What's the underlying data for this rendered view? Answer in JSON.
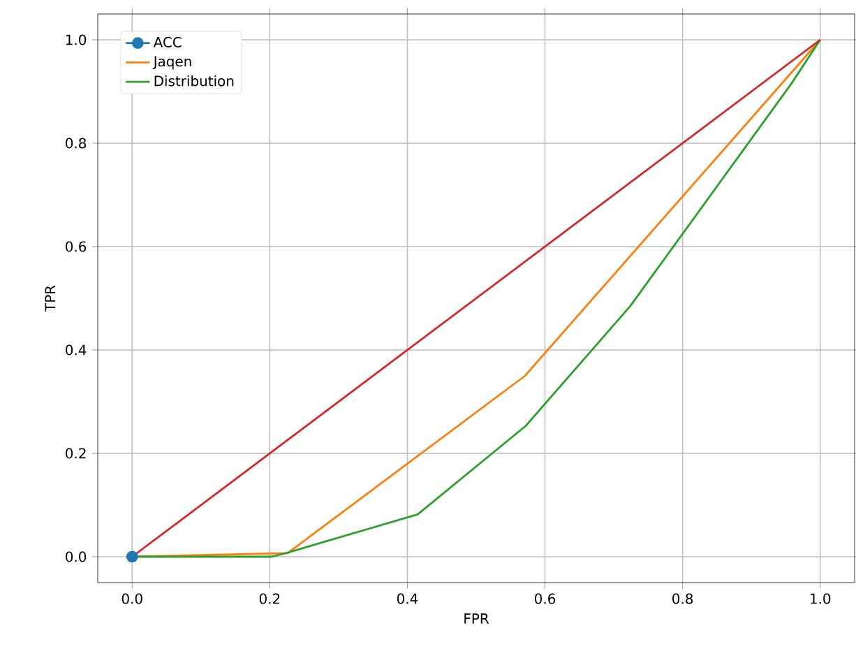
{
  "chart_data": {
    "type": "line",
    "xlabel": "FPR",
    "ylabel": "TPR",
    "xlim": [
      -0.05,
      1.05
    ],
    "ylim": [
      -0.05,
      1.05
    ],
    "xticks": [
      {
        "value": 0,
        "label": "0.0"
      },
      {
        "value": 0.2,
        "label": "0.2"
      },
      {
        "value": 0.4,
        "label": "0.4"
      },
      {
        "value": 0.6,
        "label": "0.6"
      },
      {
        "value": 0.8,
        "label": "0.8"
      },
      {
        "value": 1,
        "label": "1.0"
      }
    ],
    "yticks": [
      {
        "value": 0,
        "label": "0.0"
      },
      {
        "value": 0.2,
        "label": "0.2"
      },
      {
        "value": 0.4,
        "label": "0.4"
      },
      {
        "value": 0.6,
        "label": "0.6"
      },
      {
        "value": 0.8,
        "label": "0.8"
      },
      {
        "value": 1,
        "label": "1.0"
      }
    ],
    "grid": true,
    "legend": "top left",
    "series": [
      {
        "name": "ACC",
        "color": "#1f77b4",
        "marker": "circle",
        "x": [
          0
        ],
        "values": [
          0
        ]
      },
      {
        "name": "Jaqen",
        "color": "#ff7f0e",
        "x": [
          0,
          0.226,
          0.571,
          1
        ],
        "values": [
          0,
          0.007,
          0.35,
          1
        ]
      },
      {
        "name": "Distribution",
        "color": "#2ca02c",
        "x": [
          0,
          0.203,
          0.226,
          0.415,
          0.572,
          0.724,
          0.958,
          1
        ],
        "values": [
          0,
          0,
          0.008,
          0.082,
          0.253,
          0.485,
          0.915,
          1
        ]
      },
      {
        "color": "#d62728",
        "x": [
          0,
          1
        ],
        "values": [
          0,
          1
        ]
      }
    ]
  }
}
